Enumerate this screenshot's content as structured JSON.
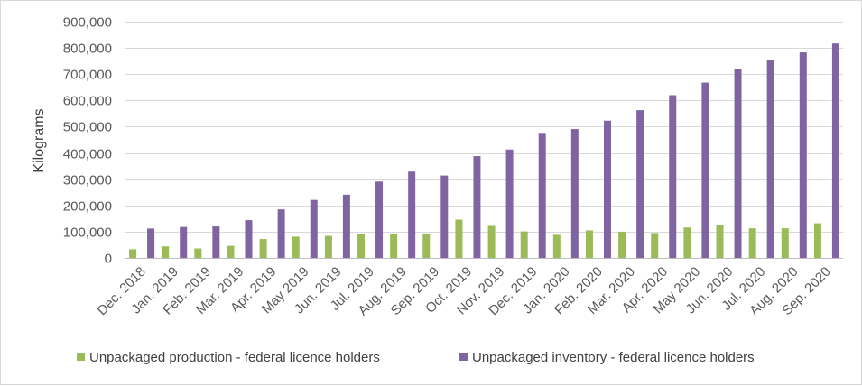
{
  "chart_data": {
    "type": "bar",
    "title": "",
    "xlabel": "",
    "ylabel": "Kilograms",
    "ylim": [
      0,
      900000
    ],
    "yticks": [
      "0",
      "100,000",
      "200,000",
      "300,000",
      "400,000",
      "500,000",
      "600,000",
      "700,000",
      "800,000",
      "900,000"
    ],
    "grid": true,
    "legend_position": "bottom",
    "categories": [
      "Dec. 2018",
      "Jan. 2019",
      "Feb. 2019",
      "Mar. 2019",
      "Apr. 2019",
      "May 2019",
      "Jun. 2019",
      "Jul. 2019",
      "Aug. 2019",
      "Sep. 2019",
      "Oct. 2019",
      "Nov. 2019",
      "Dec. 2019",
      "Jan. 2020",
      "Feb. 2020",
      "Mar. 2020",
      "Apr. 2020",
      "May 2020",
      "Jun. 2020",
      "Jul. 2020",
      "Aug. 2020",
      "Sep. 2020"
    ],
    "series": [
      {
        "name": "Unpackaged production - federal licence holders",
        "color": "#9bbb59",
        "values": [
          33000,
          44000,
          36000,
          46000,
          72000,
          81000,
          84000,
          92000,
          91000,
          93000,
          146000,
          122000,
          101000,
          88000,
          105000,
          100000,
          95000,
          116000,
          124000,
          113000,
          113000,
          132000
        ]
      },
      {
        "name": "Unpackaged inventory - federal licence holders",
        "color": "#8064a2",
        "values": [
          112000,
          118000,
          120000,
          144000,
          185000,
          221000,
          241000,
          291000,
          329000,
          314000,
          388000,
          413000,
          473000,
          491000,
          523000,
          563000,
          620000,
          668000,
          720000,
          754000,
          783000,
          817000
        ]
      }
    ]
  }
}
